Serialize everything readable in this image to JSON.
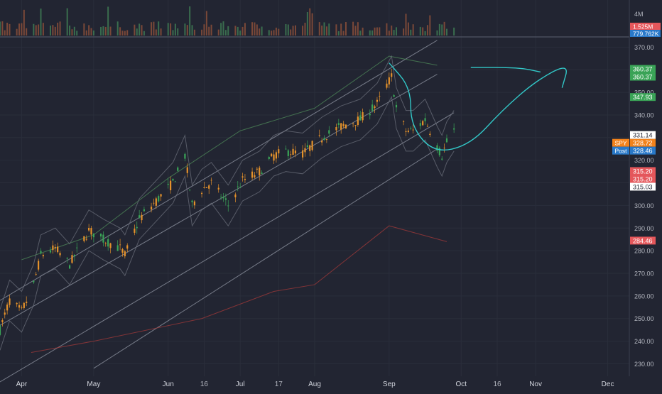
{
  "chart_data": {
    "type": "candlestick",
    "symbol": "SPY",
    "x_axis": {
      "labels": [
        "Apr",
        "May",
        "Jun",
        "16",
        "Jul",
        "17",
        "Aug",
        "Sep",
        "Oct",
        "16",
        "Nov",
        "Dec"
      ],
      "label_dates": [
        "2020-04-01",
        "2020-05-01",
        "2020-06-01",
        "2020-06-16",
        "2020-07-01",
        "2020-07-17",
        "2020-08-01",
        "2020-09-01",
        "2020-10-01",
        "2020-10-16",
        "2020-11-01",
        "2020-12-01"
      ],
      "range": [
        "2020-03-23",
        "2020-12-10"
      ]
    },
    "y_axis": {
      "ticks": [
        230,
        240,
        250,
        260,
        270,
        280,
        290,
        300,
        310,
        320,
        330,
        340,
        350,
        360,
        370
      ],
      "tick_labels": [
        "230.00",
        "240.00",
        "250.00",
        "260.00",
        "270.00",
        "280.00",
        "290.00",
        "300.00",
        "310.00",
        "320.00",
        "330.00",
        "340.00",
        "350.00",
        "360.00",
        "370.00"
      ],
      "range": [
        224.5,
        374.5
      ]
    },
    "volume": {
      "axis_label": "4M",
      "price_tags": [
        {
          "text": "1.525M",
          "color": "#e5575b"
        },
        {
          "text": "779.762K",
          "color": "#2979c9"
        }
      ]
    },
    "price_tags": [
      {
        "name": "upper-band",
        "text": "360.37",
        "value": 360.37,
        "color": "#3aa457",
        "text_color": "#ffffff"
      },
      {
        "name": "upper-band-2",
        "text": "360.37",
        "value": 360.37,
        "color": "#3aa457",
        "text_color": "#ffffff"
      },
      {
        "name": "upper-mid",
        "text": "347.93",
        "value": 347.93,
        "color": "#3aa457",
        "text_color": "#ffffff"
      },
      {
        "name": "last-high",
        "text": "331.14",
        "value": 331.14,
        "color": "#ffffff",
        "text_color": "#222532"
      },
      {
        "name": "last-close",
        "text": "328.72",
        "value": 328.72,
        "color": "#f2821b",
        "text_color": "#ffffff",
        "label": "SPY"
      },
      {
        "name": "post-market",
        "text": "328.46",
        "value": 328.46,
        "color": "#2979c9",
        "text_color": "#ffffff",
        "label": "Post"
      },
      {
        "name": "mid-low",
        "text": "315.20",
        "value": 315.2,
        "color": "#e5575b",
        "text_color": "#ffffff"
      },
      {
        "name": "mid-low-2",
        "text": "315.20",
        "value": 315.2,
        "color": "#e5575b",
        "text_color": "#ffffff"
      },
      {
        "name": "last-low",
        "text": "315.03",
        "value": 315.03,
        "color": "#ffffff",
        "text_color": "#222532"
      },
      {
        "name": "lower-band",
        "text": "284.46",
        "value": 284.46,
        "color": "#e5575b",
        "text_color": "#ffffff"
      }
    ],
    "price_path": [
      [
        "2020-03-23",
        245
      ],
      [
        "2020-03-27",
        258
      ],
      [
        "2020-04-01",
        253
      ],
      [
        "2020-04-06",
        265
      ],
      [
        "2020-04-09",
        278
      ],
      [
        "2020-04-15",
        281
      ],
      [
        "2020-04-21",
        274
      ],
      [
        "2020-04-29",
        289
      ],
      [
        "2020-05-05",
        285
      ],
      [
        "2020-05-12",
        281
      ],
      [
        "2020-05-14",
        278
      ],
      [
        "2020-05-20",
        294
      ],
      [
        "2020-05-27",
        302
      ],
      [
        "2020-06-03",
        310
      ],
      [
        "2020-06-08",
        322
      ],
      [
        "2020-06-11",
        300
      ],
      [
        "2020-06-15",
        307
      ],
      [
        "2020-06-19",
        310
      ],
      [
        "2020-06-26",
        300
      ],
      [
        "2020-07-02",
        311
      ],
      [
        "2020-07-09",
        315
      ],
      [
        "2020-07-15",
        322
      ],
      [
        "2020-07-20",
        324
      ],
      [
        "2020-07-27",
        323
      ],
      [
        "2020-08-04",
        330
      ],
      [
        "2020-08-12",
        335
      ],
      [
        "2020-08-20",
        338
      ],
      [
        "2020-08-27",
        345
      ],
      [
        "2020-09-02",
        357
      ],
      [
        "2020-09-04",
        343
      ],
      [
        "2020-09-08",
        333
      ],
      [
        "2020-09-11",
        333
      ],
      [
        "2020-09-16",
        338
      ],
      [
        "2020-09-21",
        326
      ],
      [
        "2020-09-23",
        322
      ],
      [
        "2020-09-25",
        328
      ],
      [
        "2020-09-28",
        333
      ]
    ],
    "indicators": {
      "regression_channel_lines": [
        {
          "name": "channel-upper",
          "points": [
            [
              "2020-03-23",
              258
            ],
            [
              "2020-09-21",
              373
            ]
          ]
        },
        {
          "name": "channel-mid-upper",
          "points": [
            [
              "2020-03-23",
              247
            ],
            [
              "2020-09-21",
              358
            ]
          ]
        },
        {
          "name": "channel-mid-lower",
          "points": [
            [
              "2020-03-23",
              222
            ],
            [
              "2020-09-28",
              341
            ]
          ]
        },
        {
          "name": "channel-lower",
          "points": [
            [
              "2020-05-01",
              228
            ],
            [
              "2020-09-21",
              325
            ]
          ]
        }
      ],
      "outer_upper_band": [
        [
          "2020-04-01",
          276
        ],
        [
          "2020-05-01",
          287
        ],
        [
          "2020-06-01",
          312
        ],
        [
          "2020-07-01",
          333
        ],
        [
          "2020-08-01",
          343
        ],
        [
          "2020-09-01",
          366
        ],
        [
          "2020-09-21",
          362
        ]
      ],
      "outer_lower_band": [
        [
          "2020-04-05",
          235
        ],
        [
          "2020-05-01",
          240
        ],
        [
          "2020-06-15",
          250
        ],
        [
          "2020-07-15",
          262
        ],
        [
          "2020-08-01",
          265
        ],
        [
          "2020-09-01",
          291
        ],
        [
          "2020-09-25",
          284
        ]
      ]
    },
    "annotations": [
      {
        "name": "drawing-circle-curve",
        "color": "#32c8c8",
        "points": [
          [
            "2020-09-01",
            363
          ],
          [
            "2020-09-10",
            352
          ],
          [
            "2020-09-10",
            335
          ],
          [
            "2020-09-20",
            323
          ],
          [
            "2020-10-05",
            327
          ],
          [
            "2020-10-18",
            342
          ],
          [
            "2020-11-01",
            355
          ],
          [
            "2020-11-15",
            363
          ],
          [
            "2020-11-12",
            352
          ]
        ]
      },
      {
        "name": "drawing-tail-line",
        "color": "#32c8c8",
        "points": [
          [
            "2020-10-05",
            361
          ],
          [
            "2020-10-25",
            361
          ],
          [
            "2020-11-03",
            359
          ]
        ]
      }
    ],
    "grid": true,
    "legend": "none"
  }
}
